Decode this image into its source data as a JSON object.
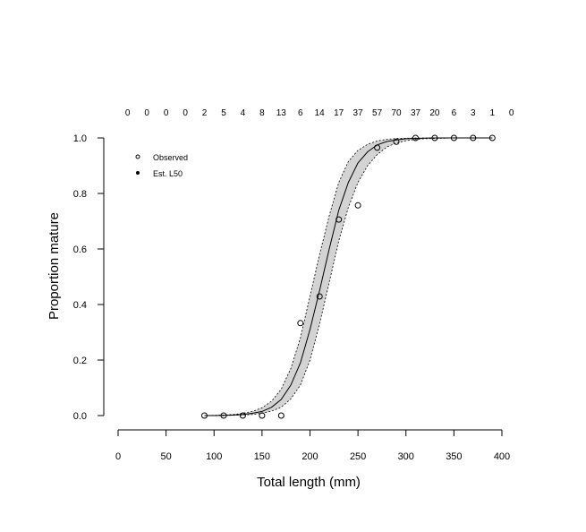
{
  "chart_data": {
    "type": "line",
    "xlabel": "Total length (mm)",
    "ylabel": "Proportion mature",
    "xlim": [
      0,
      400
    ],
    "ylim": [
      0,
      1
    ],
    "x_ticks": [
      0,
      50,
      100,
      150,
      200,
      250,
      300,
      350,
      400
    ],
    "y_ticks": [
      "0.0",
      "0.2",
      "0.4",
      "0.6",
      "0.8",
      "1.0"
    ],
    "grid": false,
    "legend_position": "top-left",
    "legend": [
      {
        "label": "Observed",
        "marker": "open-circle"
      },
      {
        "label": "Est. L50",
        "marker": "filled-circle"
      }
    ],
    "sample_sizes": {
      "lengths": [
        10,
        30,
        50,
        70,
        90,
        110,
        130,
        150,
        170,
        190,
        210,
        230,
        250,
        270,
        290,
        310,
        330,
        350,
        370,
        390,
        410
      ],
      "counts": [
        "0",
        "0",
        "0",
        "0",
        "2",
        "5",
        "4",
        "8",
        "13",
        "6",
        "14",
        "17",
        "37",
        "57",
        "70",
        "37",
        "20",
        "6",
        "3",
        "1",
        "0"
      ]
    },
    "observed": {
      "x": [
        90,
        110,
        130,
        150,
        170,
        190,
        210,
        230,
        250,
        270,
        290,
        310,
        330,
        350,
        370,
        390
      ],
      "y": [
        0.0,
        0.0,
        0.0,
        0.0,
        0.0,
        0.333,
        0.429,
        0.706,
        0.757,
        0.965,
        0.986,
        1.0,
        1.0,
        1.0,
        1.0,
        1.0
      ]
    },
    "fit": {
      "x": [
        90,
        100,
        110,
        120,
        130,
        140,
        150,
        160,
        170,
        180,
        190,
        200,
        210,
        220,
        230,
        240,
        250,
        260,
        270,
        280,
        290,
        300,
        310,
        320,
        330,
        340,
        350,
        360,
        370,
        380,
        390
      ],
      "y": [
        0.0,
        0.0,
        0.001,
        0.002,
        0.004,
        0.008,
        0.015,
        0.03,
        0.058,
        0.11,
        0.19,
        0.31,
        0.45,
        0.6,
        0.74,
        0.84,
        0.91,
        0.95,
        0.975,
        0.987,
        0.993,
        0.997,
        0.998,
        0.999,
        1.0,
        1.0,
        1.0,
        1.0,
        1.0,
        1.0,
        1.0
      ],
      "lower": [
        0.0,
        0.0,
        0.0,
        0.001,
        0.002,
        0.004,
        0.008,
        0.016,
        0.03,
        0.06,
        0.11,
        0.2,
        0.33,
        0.48,
        0.63,
        0.75,
        0.84,
        0.9,
        0.94,
        0.967,
        0.982,
        0.99,
        0.995,
        0.997,
        0.998,
        0.999,
        1.0,
        1.0,
        1.0,
        1.0,
        1.0
      ],
      "upper": [
        0.0,
        0.001,
        0.002,
        0.004,
        0.008,
        0.015,
        0.028,
        0.052,
        0.095,
        0.17,
        0.28,
        0.43,
        0.58,
        0.72,
        0.84,
        0.915,
        0.955,
        0.977,
        0.989,
        0.995,
        0.998,
        0.999,
        1.0,
        1.0,
        1.0,
        1.0,
        1.0,
        1.0,
        1.0,
        1.0,
        1.0
      ]
    }
  }
}
